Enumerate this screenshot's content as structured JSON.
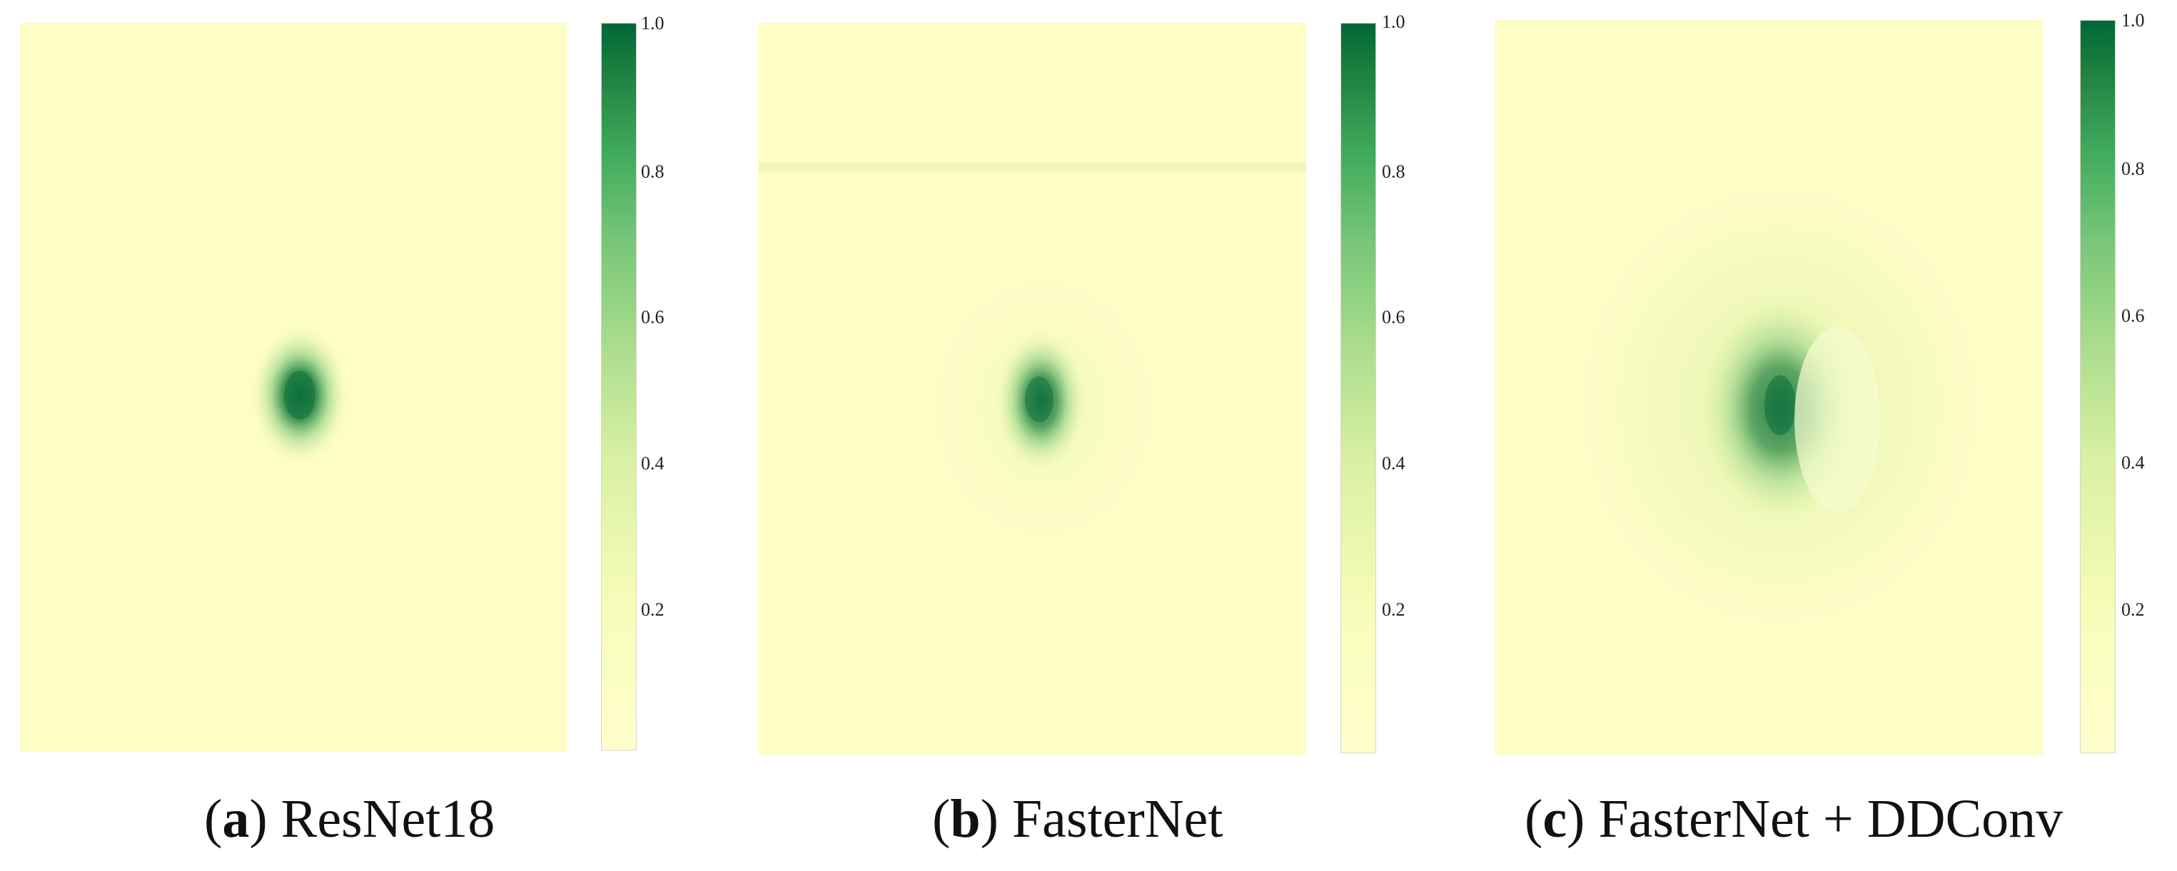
{
  "colors": {
    "colormap": "YlGn",
    "low": "#ffffcc",
    "high": "#006837"
  },
  "chart_data": [
    {
      "type": "heatmap",
      "caption_letter": "a",
      "caption_text": "ResNet18",
      "colorbar": {
        "ticks": [
          "0.2",
          "0.4",
          "0.6",
          "0.8",
          "1.0"
        ],
        "range": [
          0,
          1
        ]
      },
      "hotspot": {
        "peak_value": 0.9,
        "location": "center-left, slightly above middle",
        "spread": "compact"
      }
    },
    {
      "type": "heatmap",
      "caption_letter": "b",
      "caption_text": "FasterNet",
      "colorbar": {
        "ticks": [
          "0.2",
          "0.4",
          "0.6",
          "0.8",
          "1.0"
        ],
        "range": [
          0,
          1
        ]
      },
      "hotspot": {
        "peak_value": 0.85,
        "location": "center, slightly above middle",
        "spread": "compact with faint background structure"
      }
    },
    {
      "type": "heatmap",
      "caption_letter": "c",
      "caption_text": "FasterNet + DDConv",
      "colorbar": {
        "ticks": [
          "0.2",
          "0.4",
          "0.6",
          "0.8",
          "1.0"
        ],
        "range": [
          0,
          1
        ]
      },
      "hotspot": {
        "peak_value": 0.85,
        "location": "center, slightly above middle",
        "spread": "diffuse activation over a wider region"
      }
    }
  ]
}
